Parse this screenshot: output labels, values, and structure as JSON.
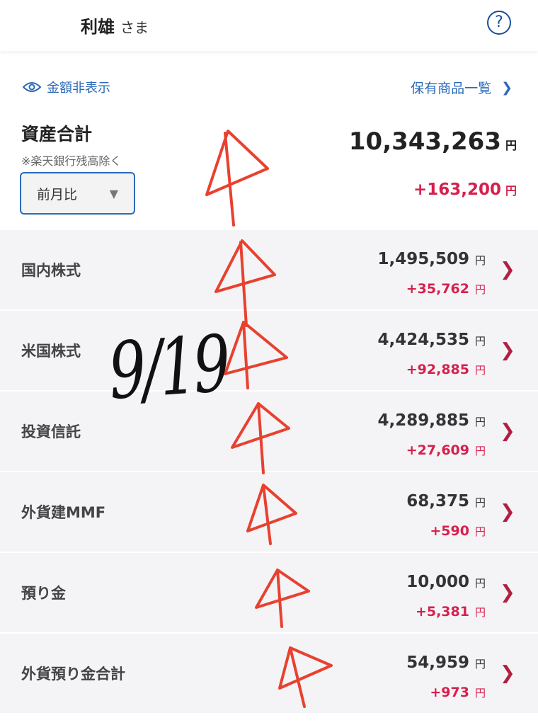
{
  "header": {
    "user_name": "利雄",
    "honorific": "さま",
    "help_icon": "question-circle-icon"
  },
  "summary": {
    "hide_amount_label": "金額非表示",
    "holdings_link_label": "保有商品一覧",
    "total_label": "資産合計",
    "note": "※楽天銀行残高除く",
    "compare_select": "前月比",
    "total_value": "10,343,263",
    "total_diff": "+163,200",
    "currency": "円"
  },
  "rows": [
    {
      "label": "国内株式",
      "value": "1,495,509",
      "diff": "+35,762"
    },
    {
      "label": "米国株式",
      "value": "4,424,535",
      "diff": "+92,885"
    },
    {
      "label": "投資信託",
      "value": "4,289,885",
      "diff": "+27,609"
    },
    {
      "label": "外貨建MMF",
      "value": "68,375",
      "diff": "+590"
    },
    {
      "label": "預り金",
      "value": "10,000",
      "diff": "+5,381"
    },
    {
      "label": "外貨預り金合計",
      "value": "54,959",
      "diff": "+973"
    }
  ],
  "annotations": {
    "handwritten_date": "9/19",
    "arrow_color": "#e8412f"
  },
  "colors": {
    "accent": "#2a6ab8",
    "positive": "#d6204d"
  }
}
